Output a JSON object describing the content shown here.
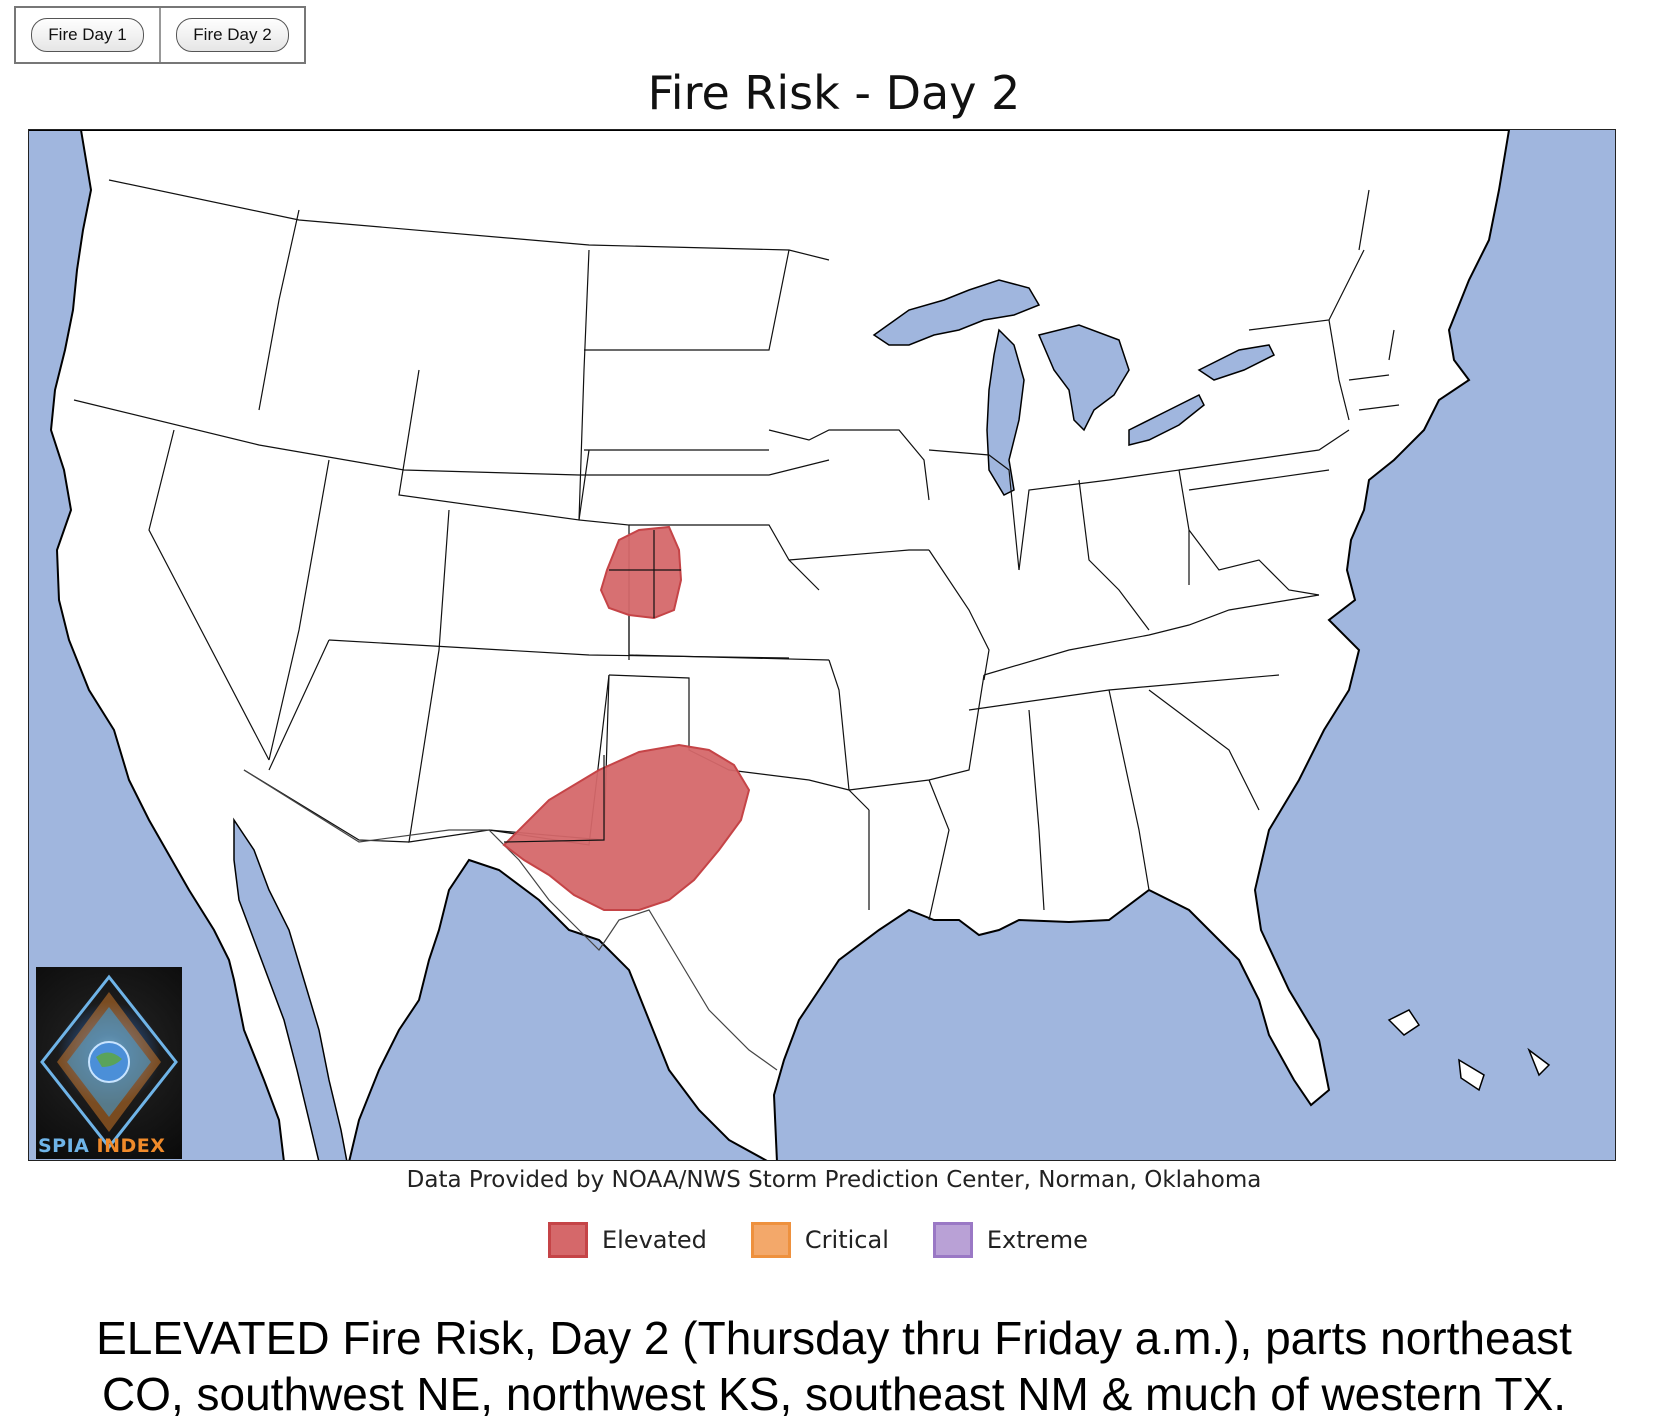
{
  "toolbar": {
    "buttons": [
      {
        "label": "Fire Day 1"
      },
      {
        "label": "Fire Day 2"
      }
    ]
  },
  "map": {
    "title": "Fire Risk - Day 2",
    "credit": "Data Provided by NOAA/NWS Storm Prediction Center, Norman, Oklahoma",
    "logo_text_1": "SPIA",
    "logo_text_2": "INDEX",
    "ocean_color": "#a0b6de",
    "land_color": "#ffffff",
    "risk_areas": [
      {
        "category": "Elevated",
        "region": "northeast CO, southwest NE, northwest KS"
      },
      {
        "category": "Elevated",
        "region": "southeast NM & much of western TX"
      }
    ]
  },
  "legend": [
    {
      "label": "Elevated",
      "fill": "#d5686a",
      "stroke": "#c54447"
    },
    {
      "label": "Critical",
      "fill": "#f3a86a",
      "stroke": "#ee913e"
    },
    {
      "label": "Extreme",
      "fill": "#b9a1d6",
      "stroke": "#9a78c5"
    }
  ],
  "caption": {
    "line1": "ELEVATED Fire Risk, Day 2 (Thursday thru Friday a.m.), parts northeast",
    "line2": "CO, southwest NE, northwest KS, southeast NM & much of western TX."
  }
}
